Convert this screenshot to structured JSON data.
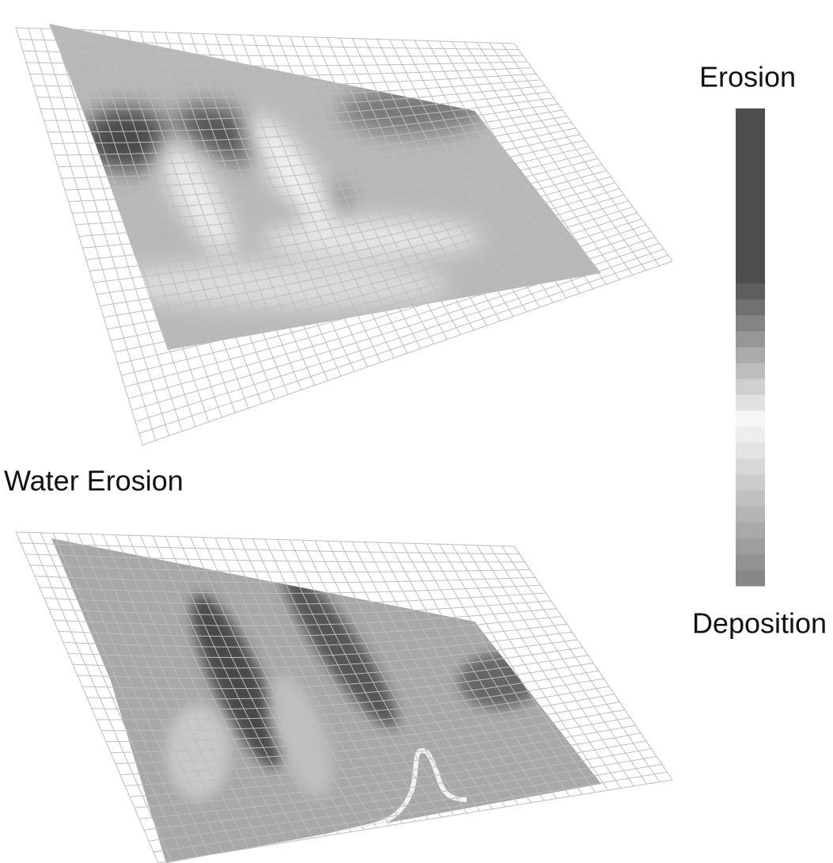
{
  "legend": {
    "top_label": "Erosion",
    "bottom_label": "Deposition"
  },
  "panels": [
    {
      "title": "Water Erosion"
    }
  ]
}
